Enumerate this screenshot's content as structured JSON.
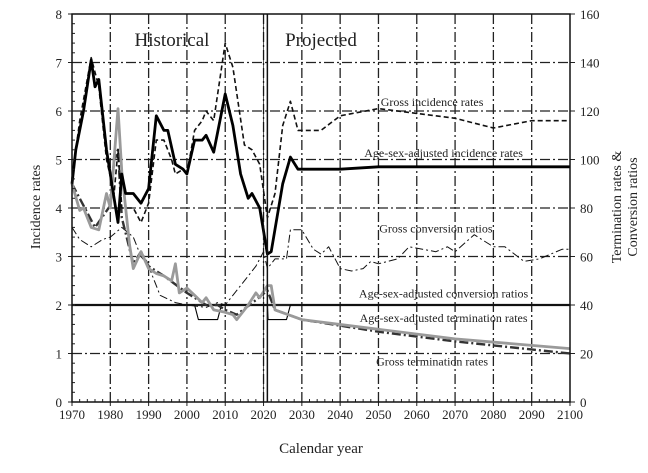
{
  "chart_data": {
    "type": "line",
    "xlabel": "Calendar year",
    "ylabel": "Incidence rates",
    "y2label_line1": "Termination rates &",
    "y2label_line2": "Conversion ratios",
    "xlim": [
      1970,
      2100
    ],
    "ylim": [
      0,
      8
    ],
    "y2lim": [
      0,
      160
    ],
    "xticks": [
      1970,
      1980,
      1990,
      2000,
      2010,
      2020,
      2030,
      2040,
      2050,
      2060,
      2070,
      2080,
      2090,
      2100
    ],
    "yticks": [
      0,
      1,
      2,
      3,
      4,
      5,
      6,
      7,
      8
    ],
    "y2ticks": [
      0,
      20,
      40,
      60,
      80,
      100,
      120,
      140,
      160
    ],
    "grid": true,
    "divider_year": 2021,
    "region_labels": {
      "historical": "Historical",
      "projected": "Projected"
    },
    "series": [
      {
        "name": "Gross incidence rates",
        "axis": "left",
        "style": "dashed",
        "color": "#111111",
        "points": [
          [
            1970,
            4.6
          ],
          [
            1972,
            5.8
          ],
          [
            1975,
            7.1
          ],
          [
            1977,
            6.5
          ],
          [
            1979,
            5.0
          ],
          [
            1981,
            4.3
          ],
          [
            1982,
            5.2
          ],
          [
            1983,
            4.0
          ],
          [
            1986,
            4.0
          ],
          [
            1988,
            3.7
          ],
          [
            1990,
            4.1
          ],
          [
            1992,
            5.4
          ],
          [
            1994,
            5.4
          ],
          [
            1996,
            5.0
          ],
          [
            1997,
            4.7
          ],
          [
            1999,
            4.8
          ],
          [
            2000,
            4.7
          ],
          [
            2002,
            5.6
          ],
          [
            2004,
            5.8
          ],
          [
            2005,
            6.0
          ],
          [
            2007,
            5.8
          ],
          [
            2010,
            7.4
          ],
          [
            2012,
            6.9
          ],
          [
            2015,
            5.3
          ],
          [
            2017,
            5.2
          ],
          [
            2019,
            4.9
          ],
          [
            2021,
            3.8
          ],
          [
            2023,
            4.3
          ],
          [
            2025,
            5.7
          ],
          [
            2027,
            6.2
          ],
          [
            2029,
            5.6
          ],
          [
            2035,
            5.6
          ],
          [
            2040,
            5.9
          ],
          [
            2050,
            6.05
          ],
          [
            2060,
            5.95
          ],
          [
            2070,
            5.85
          ],
          [
            2080,
            5.65
          ],
          [
            2090,
            5.8
          ],
          [
            2100,
            5.8
          ]
        ]
      },
      {
        "name": "Age-sex-adjusted incidence rates",
        "axis": "left",
        "style": "solid-thick",
        "color": "#000000",
        "points": [
          [
            1970,
            4.5
          ],
          [
            1971,
            5.2
          ],
          [
            1973,
            6.0
          ],
          [
            1975,
            7.05
          ],
          [
            1976,
            6.5
          ],
          [
            1977,
            6.65
          ],
          [
            1979,
            5.2
          ],
          [
            1981,
            4.2
          ],
          [
            1982,
            3.7
          ],
          [
            1983,
            4.7
          ],
          [
            1984,
            4.3
          ],
          [
            1986,
            4.3
          ],
          [
            1988,
            4.1
          ],
          [
            1990,
            4.4
          ],
          [
            1992,
            5.9
          ],
          [
            1994,
            5.6
          ],
          [
            1995,
            5.6
          ],
          [
            1997,
            4.9
          ],
          [
            1999,
            4.8
          ],
          [
            2000,
            4.7
          ],
          [
            2002,
            5.4
          ],
          [
            2004,
            5.4
          ],
          [
            2005,
            5.5
          ],
          [
            2007,
            5.15
          ],
          [
            2010,
            6.35
          ],
          [
            2012,
            5.7
          ],
          [
            2014,
            4.7
          ],
          [
            2016,
            4.2
          ],
          [
            2017,
            4.3
          ],
          [
            2019,
            4.0
          ],
          [
            2021,
            3.05
          ],
          [
            2022,
            3.1
          ],
          [
            2025,
            4.5
          ],
          [
            2027,
            5.05
          ],
          [
            2029,
            4.8
          ],
          [
            2040,
            4.8
          ],
          [
            2050,
            4.85
          ],
          [
            2100,
            4.85
          ]
        ]
      },
      {
        "name": "Gross conversion ratios",
        "axis": "right",
        "style": "dashdot-thin",
        "color": "#111111",
        "points": [
          [
            1970,
            72
          ],
          [
            1972,
            67
          ],
          [
            1975,
            64
          ],
          [
            1978,
            67
          ],
          [
            1980,
            68
          ],
          [
            1983,
            72
          ],
          [
            1986,
            68
          ],
          [
            1988,
            60
          ],
          [
            1990,
            56
          ],
          [
            1993,
            44
          ],
          [
            1997,
            41
          ],
          [
            2000,
            40
          ],
          [
            2005,
            39
          ],
          [
            2008,
            41
          ],
          [
            2010,
            40
          ],
          [
            2012,
            44
          ],
          [
            2015,
            50
          ],
          [
            2018,
            56
          ],
          [
            2020,
            62
          ],
          [
            2021,
            55
          ],
          [
            2023,
            59
          ],
          [
            2026,
            59
          ],
          [
            2027,
            71
          ],
          [
            2030,
            71
          ],
          [
            2033,
            63
          ],
          [
            2035,
            61
          ],
          [
            2037,
            64
          ],
          [
            2040,
            55
          ],
          [
            2043,
            54
          ],
          [
            2046,
            55
          ],
          [
            2048,
            58
          ],
          [
            2050,
            57
          ],
          [
            2055,
            59
          ],
          [
            2058,
            64
          ],
          [
            2065,
            62
          ],
          [
            2068,
            64
          ],
          [
            2070,
            62
          ],
          [
            2075,
            69
          ],
          [
            2080,
            64
          ],
          [
            2083,
            64
          ],
          [
            2088,
            58
          ],
          [
            2092,
            59
          ],
          [
            2098,
            63
          ],
          [
            2100,
            63
          ]
        ]
      },
      {
        "name": "Age-sex-adjusted conversion ratios",
        "axis": "right",
        "style": "solid-thin",
        "color": "#000000",
        "points": [
          [
            1970,
            40
          ],
          [
            2002,
            40
          ],
          [
            2003,
            34
          ],
          [
            2008,
            34
          ],
          [
            2009,
            40
          ],
          [
            2021,
            40
          ],
          [
            2021.2,
            34
          ],
          [
            2026,
            34
          ],
          [
            2027,
            40
          ],
          [
            2100,
            40
          ]
        ]
      },
      {
        "name": "Age-sex-adjusted termination rates",
        "axis": "right",
        "style": "solid-gray",
        "color": "#9a9a9a",
        "points": [
          [
            1970,
            90
          ],
          [
            1972,
            79
          ],
          [
            1973,
            80
          ],
          [
            1975,
            72
          ],
          [
            1977,
            71
          ],
          [
            1979,
            86
          ],
          [
            1980,
            80
          ],
          [
            1982,
            121
          ],
          [
            1983,
            95
          ],
          [
            1985,
            65
          ],
          [
            1986,
            55
          ],
          [
            1988,
            62
          ],
          [
            1990,
            55
          ],
          [
            1992,
            53
          ],
          [
            1994,
            52
          ],
          [
            1996,
            50
          ],
          [
            1997,
            57
          ],
          [
            1998,
            45
          ],
          [
            2000,
            47
          ],
          [
            2002,
            44
          ],
          [
            2004,
            41
          ],
          [
            2005,
            43
          ],
          [
            2007,
            38
          ],
          [
            2010,
            37
          ],
          [
            2012,
            36
          ],
          [
            2013,
            34
          ],
          [
            2016,
            40
          ],
          [
            2018,
            45
          ],
          [
            2019,
            43
          ],
          [
            2021,
            48
          ],
          [
            2022,
            48
          ],
          [
            2023,
            38
          ],
          [
            2030,
            34
          ],
          [
            2050,
            30
          ],
          [
            2070,
            26
          ],
          [
            2100,
            22
          ]
        ]
      },
      {
        "name": "Gross termination rates",
        "axis": "right",
        "style": "dashdot-thick",
        "color": "#333333",
        "points": [
          [
            1970,
            90
          ],
          [
            1973,
            81
          ],
          [
            1976,
            72
          ],
          [
            1980,
            81
          ],
          [
            1981,
            100
          ],
          [
            1982,
            104
          ],
          [
            1983,
            76
          ],
          [
            1986,
            57
          ],
          [
            1988,
            62
          ],
          [
            1990,
            56
          ],
          [
            1994,
            52
          ],
          [
            2000,
            45
          ],
          [
            2005,
            40
          ],
          [
            2008,
            40
          ],
          [
            2010,
            38
          ],
          [
            2013,
            36
          ],
          [
            2018,
            42
          ],
          [
            2021,
            46
          ],
          [
            2023,
            38
          ],
          [
            2030,
            34
          ],
          [
            2050,
            29
          ],
          [
            2070,
            25
          ],
          [
            2100,
            20
          ]
        ]
      }
    ],
    "annotations": [
      {
        "text": "Gross incidence rates",
        "year": 2064,
        "y2": 122
      },
      {
        "text": "Age-sex-adjusted incidence rates",
        "year": 2067,
        "y2": 101
      },
      {
        "text": "Gross conversion ratios",
        "year": 2065,
        "y2": 70
      },
      {
        "text": "Age-sex-adjusted conversion ratios",
        "year": 2067,
        "y2": 43
      },
      {
        "text": "Age-sex-adjusted termination rates",
        "year": 2067,
        "y2": 33
      },
      {
        "text": "Gross termination rates",
        "year": 2064,
        "y2": 15
      }
    ]
  }
}
